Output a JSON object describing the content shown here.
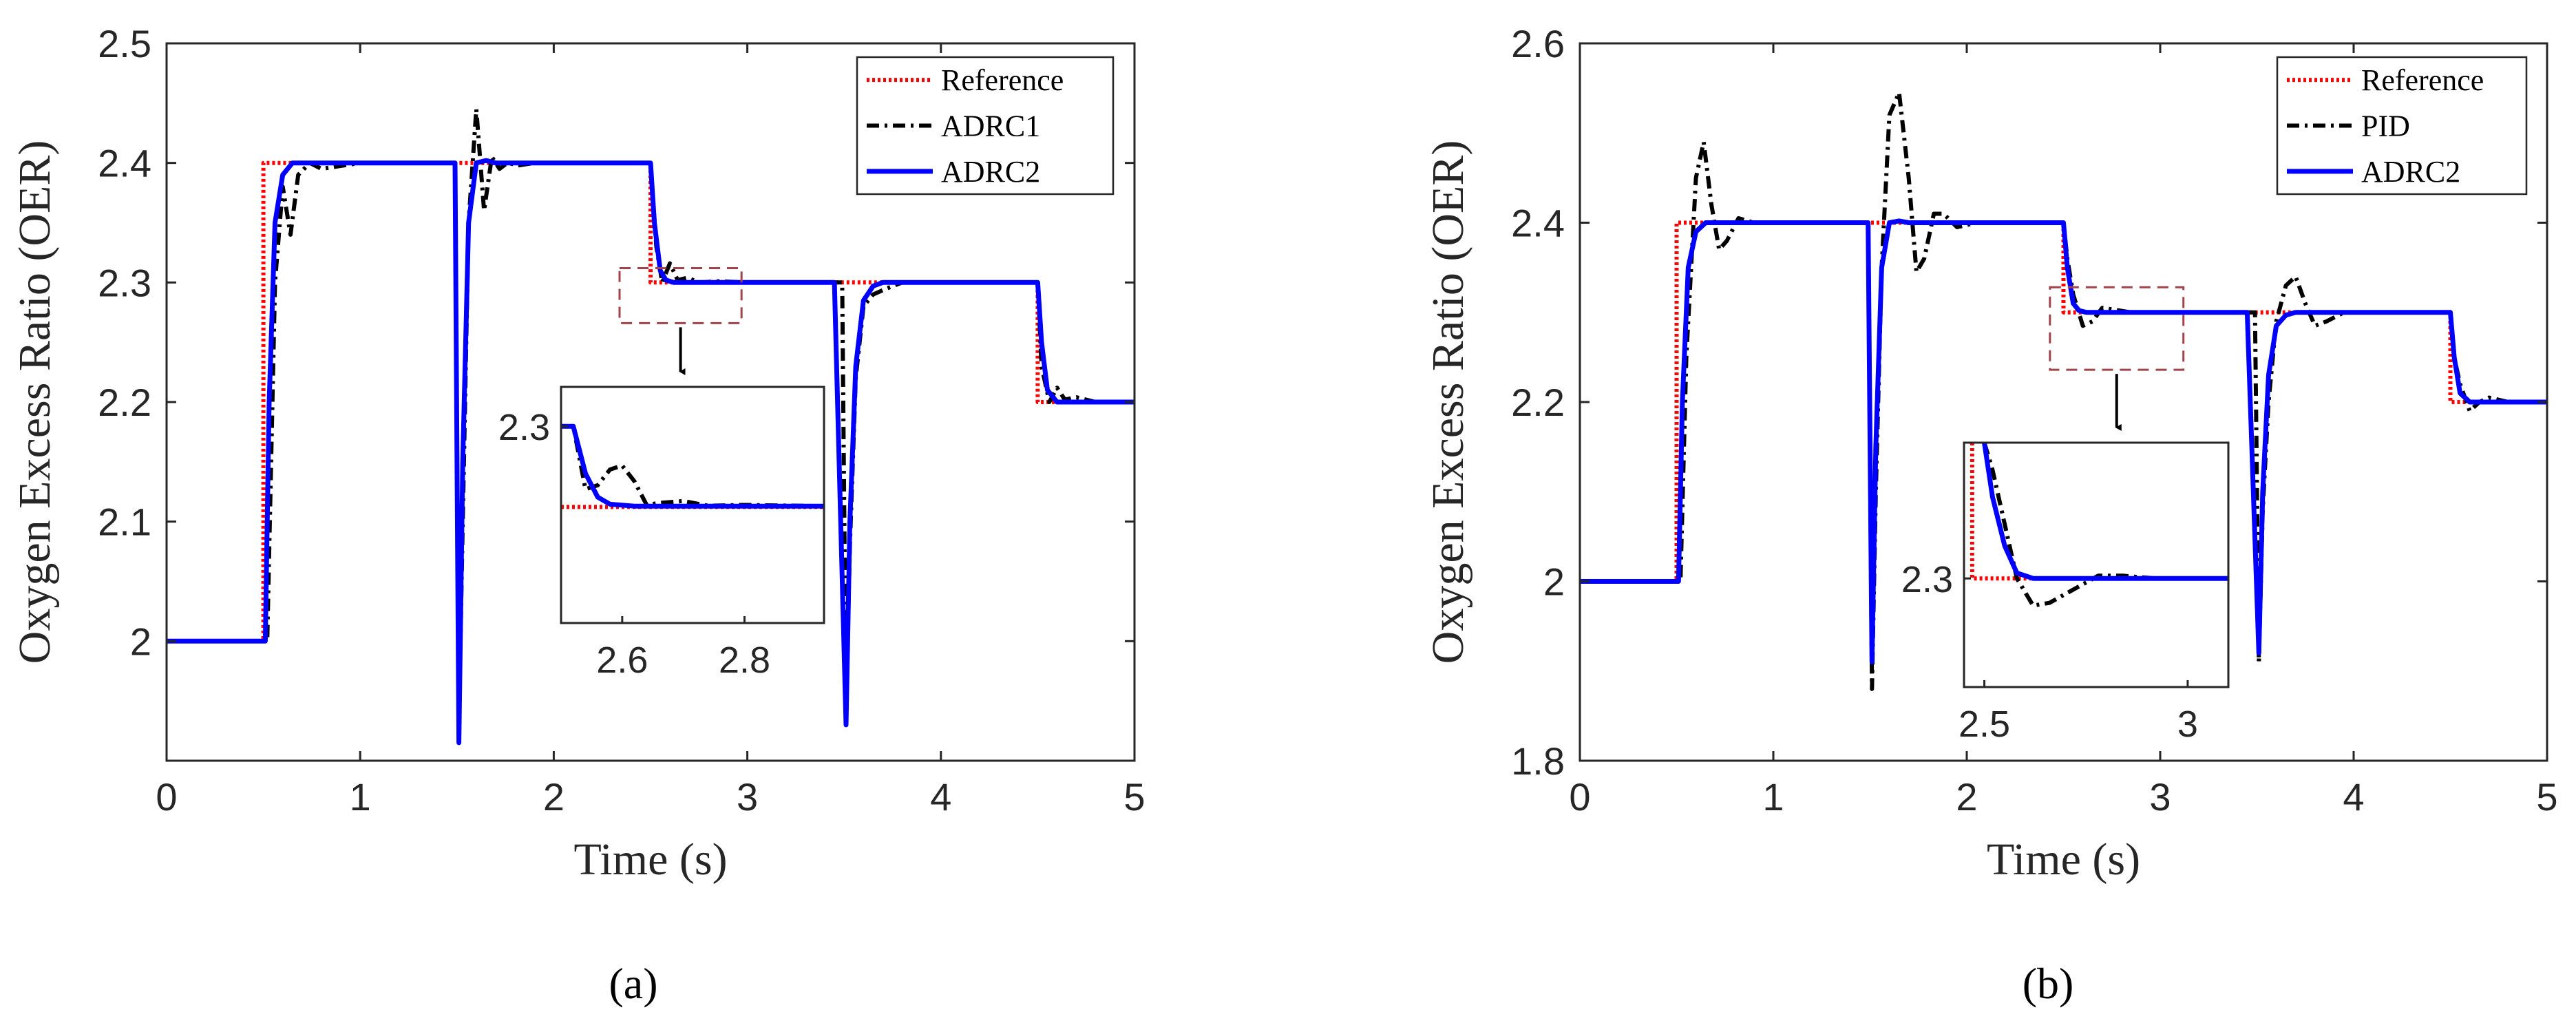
{
  "colors": {
    "reference": "#ff0000",
    "adrc1": "#000000",
    "pid": "#000000",
    "adrc2": "#0000ff",
    "zoom_box": "#a0434a",
    "axis": "#262626"
  },
  "chart_data": [
    {
      "type": "line",
      "panel_label": "(a)",
      "title": "",
      "xlabel": "Time (s)",
      "ylabel": "Oxygen Excess Ratio (OER)",
      "xlim": [
        0,
        5
      ],
      "ylim": [
        1.9,
        2.5
      ],
      "xticks": [
        "0",
        "1",
        "2",
        "3",
        "4",
        "5"
      ],
      "yticks": [
        "2",
        "2.1",
        "2.2",
        "2.3",
        "2.4",
        "2.5"
      ],
      "legend_position": "top-right",
      "grid": false,
      "series": [
        {
          "name": "Reference",
          "style": "dotted",
          "x": [
            0,
            0.5,
            0.5,
            2.5,
            2.5,
            3.5,
            3.5,
            4.5,
            4.5,
            5
          ],
          "y": [
            2.0,
            2.0,
            2.4,
            2.4,
            2.3,
            2.3,
            2.3,
            2.3,
            2.2,
            2.2
          ]
        },
        {
          "name": "ADRC1",
          "style": "dashdot",
          "x": [
            0,
            0.52,
            0.56,
            0.6,
            0.64,
            0.68,
            0.74,
            0.8,
            1.0,
            1.49,
            1.51,
            1.53,
            1.56,
            1.6,
            1.64,
            1.68,
            1.72,
            1.76,
            1.82,
            1.9,
            2.0,
            2.5,
            2.53,
            2.56,
            2.6,
            2.64,
            2.69,
            2.75,
            2.85,
            3.0,
            3.49,
            3.51,
            3.53,
            3.56,
            3.6,
            3.65,
            3.72,
            3.8,
            4.0,
            4.5,
            4.52,
            4.56,
            4.6,
            4.64,
            4.7,
            4.8,
            5.0
          ],
          "y": [
            2.0,
            2.0,
            2.3,
            2.38,
            2.34,
            2.39,
            2.4,
            2.395,
            2.4,
            2.4,
            1.93,
            2.1,
            2.35,
            2.445,
            2.36,
            2.405,
            2.395,
            2.4,
            2.398,
            2.4,
            2.4,
            2.4,
            2.33,
            2.3,
            2.316,
            2.302,
            2.304,
            2.3,
            2.301,
            2.3,
            2.3,
            1.94,
            2.08,
            2.22,
            2.28,
            2.29,
            2.295,
            2.3,
            2.3,
            2.3,
            2.23,
            2.2,
            2.212,
            2.202,
            2.204,
            2.2,
            2.2
          ]
        },
        {
          "name": "ADRC2",
          "style": "solid",
          "x": [
            0,
            0.51,
            0.53,
            0.56,
            0.6,
            0.65,
            0.7,
            1.0,
            1.49,
            1.51,
            1.53,
            1.56,
            1.6,
            1.65,
            1.7,
            2.0,
            2.5,
            2.52,
            2.55,
            2.58,
            2.62,
            2.7,
            3.0,
            3.44,
            3.45,
            3.51,
            3.53,
            3.56,
            3.6,
            3.65,
            3.7,
            4.0,
            4.5,
            4.52,
            4.55,
            4.6,
            4.7,
            5.0
          ],
          "y": [
            2.0,
            2.0,
            2.2,
            2.35,
            2.39,
            2.4,
            2.4,
            2.4,
            2.4,
            1.915,
            2.15,
            2.35,
            2.4,
            2.402,
            2.4,
            2.4,
            2.4,
            2.35,
            2.31,
            2.302,
            2.3,
            2.3,
            2.3,
            2.3,
            2.3,
            1.93,
            2.1,
            2.23,
            2.285,
            2.297,
            2.3,
            2.3,
            2.3,
            2.25,
            2.21,
            2.2,
            2.2,
            2.2
          ]
        }
      ],
      "zoom_box": {
        "x": [
          2.34,
          2.97
        ],
        "y": [
          2.266,
          2.312
        ]
      },
      "inset": {
        "xlim": [
          2.5,
          2.93
        ],
        "ylim": [
          2.25,
          2.31
        ],
        "xticks": [
          "2.6",
          "2.8"
        ],
        "yticks": [
          "2.3"
        ],
        "series": [
          {
            "name": "Reference",
            "style": "dotted",
            "x": [
              2.5,
              2.93
            ],
            "y": [
              2.2795,
              2.2795
            ]
          },
          {
            "name": "ADRC1",
            "style": "dashdot",
            "x": [
              2.5,
              2.52,
              2.54,
              2.56,
              2.58,
              2.6,
              2.62,
              2.64,
              2.66,
              2.7,
              2.74,
              2.8,
              2.93
            ],
            "y": [
              2.3,
              2.3,
              2.284,
              2.285,
              2.289,
              2.29,
              2.286,
              2.28,
              2.2805,
              2.281,
              2.2798,
              2.28,
              2.2797
            ]
          },
          {
            "name": "ADRC2",
            "style": "solid",
            "x": [
              2.5,
              2.52,
              2.54,
              2.56,
              2.58,
              2.62,
              2.7,
              2.93
            ],
            "y": [
              2.3,
              2.3,
              2.288,
              2.282,
              2.2802,
              2.2797,
              2.2797,
              2.2797
            ]
          }
        ]
      }
    },
    {
      "type": "line",
      "panel_label": "(b)",
      "title": "",
      "xlabel": "Time (s)",
      "ylabel": "Oxygen Excess Ratio (OER)",
      "xlim": [
        0,
        5
      ],
      "ylim": [
        1.8,
        2.6
      ],
      "xticks": [
        "0",
        "1",
        "2",
        "3",
        "4",
        "5"
      ],
      "yticks": [
        "1.8",
        "2",
        "2.2",
        "2.4",
        "2.6"
      ],
      "legend_position": "top-right",
      "grid": false,
      "series": [
        {
          "name": "Reference",
          "style": "dotted",
          "x": [
            0,
            0.5,
            0.5,
            2.5,
            2.5,
            3.5,
            3.5,
            4.5,
            4.5,
            5
          ],
          "y": [
            2.0,
            2.0,
            2.4,
            2.4,
            2.3,
            2.3,
            2.3,
            2.3,
            2.2,
            2.2
          ]
        },
        {
          "name": "PID",
          "style": "dashdot",
          "x": [
            0,
            0.52,
            0.55,
            0.6,
            0.64,
            0.68,
            0.72,
            0.76,
            0.82,
            0.9,
            1.0,
            1.49,
            1.51,
            1.53,
            1.56,
            1.6,
            1.65,
            1.7,
            1.74,
            1.78,
            1.83,
            1.88,
            1.95,
            2.05,
            2.5,
            2.52,
            2.55,
            2.6,
            2.65,
            2.7,
            2.76,
            2.85,
            3.0,
            3.49,
            3.51,
            3.53,
            3.56,
            3.6,
            3.65,
            3.7,
            3.75,
            3.8,
            3.86,
            3.95,
            4.05,
            4.5,
            4.52,
            4.55,
            4.6,
            4.65,
            4.7,
            4.8,
            5.0
          ],
          "y": [
            2.0,
            2.0,
            2.25,
            2.45,
            2.49,
            2.42,
            2.37,
            2.38,
            2.405,
            2.4,
            2.4,
            2.4,
            1.88,
            2.1,
            2.35,
            2.52,
            2.545,
            2.45,
            2.345,
            2.36,
            2.41,
            2.41,
            2.395,
            2.4,
            2.4,
            2.36,
            2.32,
            2.285,
            2.29,
            2.305,
            2.303,
            2.3,
            2.3,
            2.3,
            1.91,
            2.08,
            2.2,
            2.29,
            2.33,
            2.34,
            2.31,
            2.285,
            2.29,
            2.3,
            2.3,
            2.3,
            2.25,
            2.22,
            2.19,
            2.2,
            2.205,
            2.2,
            2.2
          ]
        },
        {
          "name": "ADRC2",
          "style": "solid",
          "x": [
            0,
            0.51,
            0.53,
            0.56,
            0.6,
            0.65,
            0.7,
            1.0,
            1.49,
            1.51,
            1.53,
            1.56,
            1.6,
            1.65,
            1.7,
            2.0,
            2.5,
            2.52,
            2.55,
            2.58,
            2.62,
            2.7,
            3.0,
            3.44,
            3.45,
            3.51,
            3.53,
            3.56,
            3.6,
            3.65,
            3.7,
            4.0,
            4.5,
            4.52,
            4.55,
            4.6,
            4.7,
            5.0
          ],
          "y": [
            2.0,
            2.0,
            2.2,
            2.35,
            2.39,
            2.4,
            2.4,
            2.4,
            2.4,
            1.91,
            2.15,
            2.35,
            2.4,
            2.402,
            2.4,
            2.4,
            2.4,
            2.35,
            2.31,
            2.302,
            2.3,
            2.3,
            2.3,
            2.3,
            2.3,
            1.92,
            2.1,
            2.23,
            2.285,
            2.297,
            2.3,
            2.3,
            2.3,
            2.25,
            2.21,
            2.2,
            2.2,
            2.2
          ]
        }
      ],
      "zoom_box": {
        "x": [
          2.43,
          3.12
        ],
        "y": [
          2.236,
          2.328
        ]
      },
      "inset": {
        "xlim": [
          2.45,
          3.1
        ],
        "ylim": [
          2.1,
          2.55
        ],
        "xticks": [
          "2.5",
          "3"
        ],
        "yticks": [
          "2.3"
        ],
        "series": [
          {
            "name": "Reference",
            "style": "dotted",
            "x": [
              2.47,
              2.47,
              2.53,
              2.53,
              3.1
            ],
            "y": [
              2.55,
              2.3,
              2.3,
              2.3,
              2.3
            ]
          },
          {
            "name": "PID",
            "style": "dashdot",
            "x": [
              2.5,
              2.52,
              2.55,
              2.58,
              2.62,
              2.66,
              2.72,
              2.78,
              2.84,
              2.92,
              3.0,
              3.1
            ],
            "y": [
              2.55,
              2.5,
              2.4,
              2.3,
              2.25,
              2.255,
              2.28,
              2.305,
              2.305,
              2.3,
              2.3,
              2.3
            ]
          },
          {
            "name": "ADRC2",
            "style": "solid",
            "x": [
              2.5,
              2.52,
              2.55,
              2.58,
              2.62,
              2.7,
              3.1
            ],
            "y": [
              2.55,
              2.45,
              2.36,
              2.31,
              2.3,
              2.3,
              2.3
            ]
          }
        ]
      }
    }
  ]
}
